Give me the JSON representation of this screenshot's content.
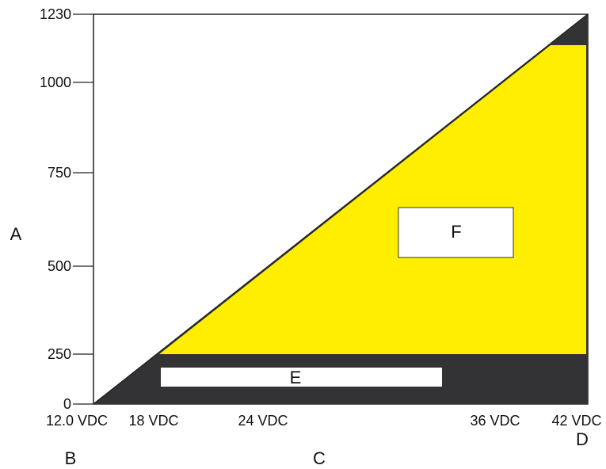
{
  "chart_data": {
    "type": "area",
    "title": "",
    "xlabel": "C",
    "ylabel": "A",
    "x_ticks": [
      "12.0 VDC",
      "18 VDC",
      "24 VDC",
      "36 VDC",
      "42 VDC"
    ],
    "y_ticks": [
      "0",
      "250",
      "500",
      "750",
      "1000",
      "1230"
    ],
    "ylim": [
      0,
      1230
    ],
    "grid": false,
    "corner_labels": {
      "origin": "B",
      "x_end": "D"
    },
    "regions": [
      {
        "label": "E",
        "color": "#333335",
        "description_shape": "dark triangle below limit line"
      },
      {
        "label": "F",
        "color": "#ffee00"
      }
    ]
  },
  "colors": {
    "dark": "#333335",
    "yellow": "#ffee00",
    "outline": "#222222"
  }
}
